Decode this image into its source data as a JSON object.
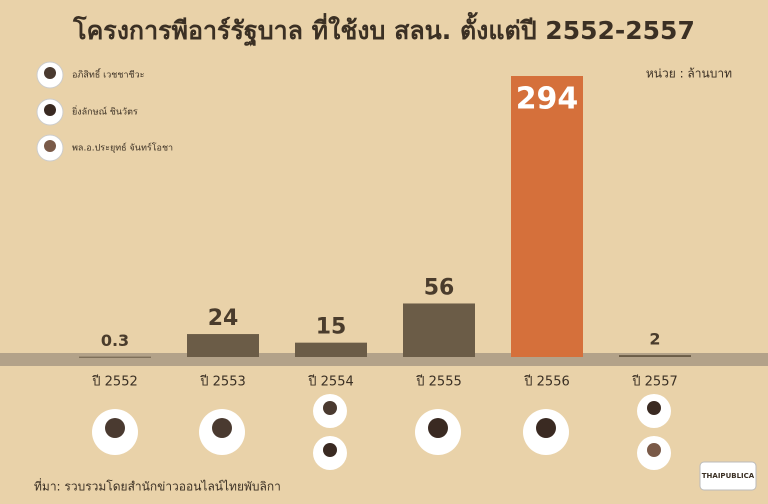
{
  "chart_data": {
    "type": "bar",
    "title": "โครงการพีอาร์รัฐบาล ที่ใช้งบ สลน. ตั้งแต่ปี 2552-2557",
    "unit": "หน่วย : ล้านบาท",
    "categories": [
      "ปี 2552",
      "ปี 2553",
      "ปี 2554",
      "ปี 2555",
      "ปี 2556",
      "ปี 2557"
    ],
    "values": [
      0.3,
      24,
      15,
      56,
      294,
      2
    ],
    "colors": [
      "#6b5c47",
      "#6b5c47",
      "#6b5c47",
      "#6b5c47",
      "#d5703b",
      "#6b5c47"
    ],
    "legend": [
      "อภิสิทธิ์ เวชชาชีวะ",
      "ยิ่งลักษณ์ ชินวัตร",
      "พล.อ.ประยุทธ์ จันทร์โอชา"
    ],
    "source": "ที่มา: รวบรวมโดยสำนักข่าวออนไลน์ไทยพับลิกา",
    "logo": "THAIPUBLICA"
  }
}
